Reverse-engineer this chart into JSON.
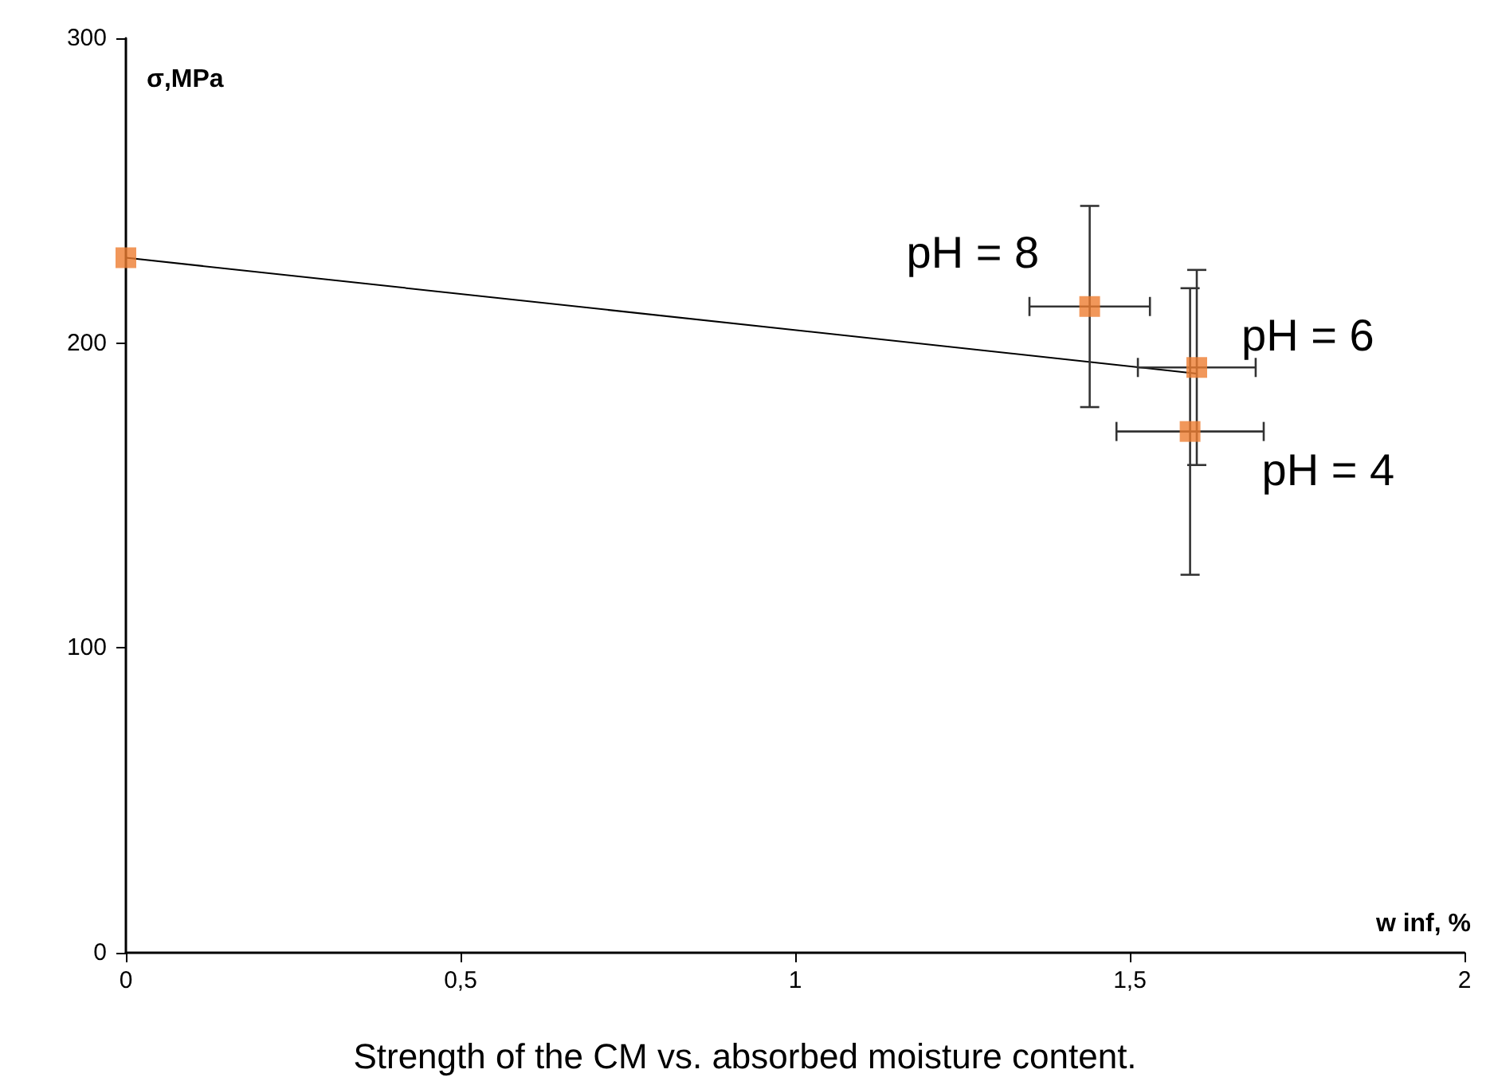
{
  "chart_data": {
    "type": "scatter",
    "title": "Strength of the CM vs. absorbed moisture content.",
    "xlabel": "w inf, %",
    "ylabel": "σ,MPa",
    "x": [
      0,
      1.44,
      1.6,
      1.59
    ],
    "series": [
      {
        "color": "#ed7d31",
        "marker": "square",
        "values": [
          228,
          212,
          192,
          171
        ],
        "errors": [
          null,
          33,
          32,
          47
        ],
        "xerrors": [
          null,
          0.09,
          0.088,
          0.11
        ]
      },
      {
        "type": "line",
        "color": "#000000",
        "marker": "none",
        "x": [
          0,
          1.6
        ],
        "values": [
          228,
          190
        ]
      }
    ],
    "annotations": [
      {
        "text": "pH = 8",
        "x": 1.44,
        "y": 212
      },
      {
        "text": "pH = 6",
        "x": 1.6,
        "y": 192
      },
      {
        "text": "pH = 4",
        "x": 1.59,
        "y": 171
      }
    ],
    "xlim": [
      0,
      2
    ],
    "xticks": [
      0,
      {
        "value": 0.5,
        "label": "0,5"
      },
      1,
      {
        "value": 1.5,
        "label": "1,5"
      },
      2
    ],
    "ylim": [
      0,
      300
    ],
    "yticks": [
      0,
      100,
      200,
      300
    ],
    "grid": false
  }
}
